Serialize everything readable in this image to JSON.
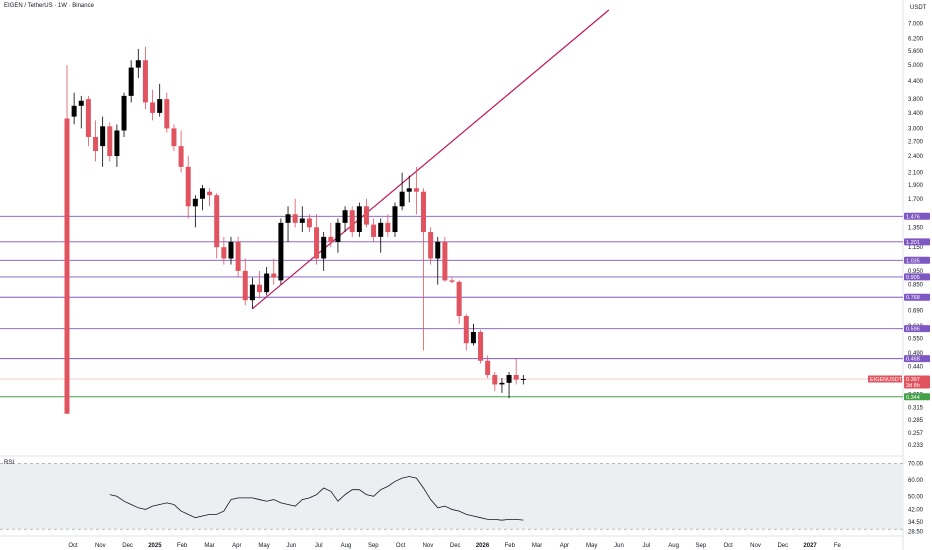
{
  "header": {
    "title": "EIGEN / TetherUS · 1W · Binance"
  },
  "chart_data": {
    "type": "candlestick",
    "title": "EIGEN / TetherUS · 1W · Binance",
    "currency_label": "USDT",
    "scale": "log",
    "ylim": [
      0.215,
      7.8
    ],
    "y_ticks": [
      "7.000",
      "6.200",
      "5.600",
      "5.000",
      "4.400",
      "3.800",
      "3.400",
      "3.000",
      "2.700",
      "2.400",
      "2.100",
      "1.900",
      "1.700",
      "1.350",
      "1.150",
      "0.950",
      "0.850",
      "0.690",
      "0.610",
      "0.550",
      "0.490",
      "0.440",
      "0.350",
      "0.315",
      "0.285",
      "0.257",
      "0.233"
    ],
    "x_ticks": [
      "Oct",
      "Nov",
      "Dec",
      "2025",
      "Feb",
      "Mar",
      "Apr",
      "May",
      "Jun",
      "Jul",
      "Aug",
      "Sep",
      "Oct",
      "Nov",
      "Dec",
      "2026",
      "Feb",
      "Mar",
      "Apr",
      "May",
      "Jun",
      "Jul",
      "Aug",
      "Sep",
      "Oct",
      "Nov",
      "Dec",
      "2027",
      "Fe"
    ],
    "candles": [
      {
        "o": 3.25,
        "h": 5.0,
        "l": 0.3,
        "c": 0.3
      },
      {
        "o": 3.3,
        "h": 4.0,
        "l": 3.1,
        "c": 3.6
      },
      {
        "o": 3.6,
        "h": 3.9,
        "l": 3.0,
        "c": 3.75
      },
      {
        "o": 3.8,
        "h": 3.9,
        "l": 2.6,
        "c": 2.8
      },
      {
        "o": 2.8,
        "h": 3.2,
        "l": 2.3,
        "c": 2.5
      },
      {
        "o": 2.6,
        "h": 3.3,
        "l": 2.2,
        "c": 3.05
      },
      {
        "o": 3.05,
        "h": 3.15,
        "l": 2.3,
        "c": 2.4
      },
      {
        "o": 2.4,
        "h": 3.1,
        "l": 2.2,
        "c": 2.95
      },
      {
        "o": 2.95,
        "h": 4.0,
        "l": 2.8,
        "c": 3.9
      },
      {
        "o": 3.9,
        "h": 5.2,
        "l": 3.7,
        "c": 4.9
      },
      {
        "o": 4.9,
        "h": 5.7,
        "l": 4.5,
        "c": 5.2
      },
      {
        "o": 5.2,
        "h": 5.8,
        "l": 3.5,
        "c": 3.7
      },
      {
        "o": 3.7,
        "h": 4.1,
        "l": 3.2,
        "c": 3.4
      },
      {
        "o": 3.4,
        "h": 4.3,
        "l": 3.3,
        "c": 3.8
      },
      {
        "o": 3.8,
        "h": 4.0,
        "l": 2.9,
        "c": 3.0
      },
      {
        "o": 3.0,
        "h": 3.1,
        "l": 2.5,
        "c": 2.6
      },
      {
        "o": 2.6,
        "h": 2.95,
        "l": 2.1,
        "c": 2.2
      },
      {
        "o": 2.2,
        "h": 2.4,
        "l": 1.45,
        "c": 1.6
      },
      {
        "o": 1.6,
        "h": 1.75,
        "l": 1.35,
        "c": 1.7
      },
      {
        "o": 1.7,
        "h": 1.9,
        "l": 1.55,
        "c": 1.85
      },
      {
        "o": 1.8,
        "h": 1.85,
        "l": 1.6,
        "c": 1.75
      },
      {
        "o": 1.75,
        "h": 1.78,
        "l": 1.05,
        "c": 1.15
      },
      {
        "o": 1.15,
        "h": 1.25,
        "l": 1.0,
        "c": 1.05
      },
      {
        "o": 1.05,
        "h": 1.25,
        "l": 1.0,
        "c": 1.2
      },
      {
        "o": 1.2,
        "h": 1.25,
        "l": 0.9,
        "c": 0.95
      },
      {
        "o": 0.95,
        "h": 1.05,
        "l": 0.72,
        "c": 0.75
      },
      {
        "o": 0.75,
        "h": 0.9,
        "l": 0.7,
        "c": 0.85
      },
      {
        "o": 0.85,
        "h": 0.95,
        "l": 0.76,
        "c": 0.8
      },
      {
        "o": 0.8,
        "h": 0.98,
        "l": 0.78,
        "c": 0.93
      },
      {
        "o": 0.93,
        "h": 1.05,
        "l": 0.85,
        "c": 0.9
      },
      {
        "o": 0.88,
        "h": 1.45,
        "l": 0.85,
        "c": 1.4
      },
      {
        "o": 1.4,
        "h": 1.6,
        "l": 1.2,
        "c": 1.5
      },
      {
        "o": 1.5,
        "h": 1.7,
        "l": 1.35,
        "c": 1.4
      },
      {
        "o": 1.4,
        "h": 1.6,
        "l": 1.3,
        "c": 1.45
      },
      {
        "o": 1.45,
        "h": 1.5,
        "l": 1.3,
        "c": 1.35
      },
      {
        "o": 1.35,
        "h": 1.5,
        "l": 1.0,
        "c": 1.05
      },
      {
        "o": 1.05,
        "h": 1.3,
        "l": 0.95,
        "c": 1.25
      },
      {
        "o": 1.25,
        "h": 1.4,
        "l": 1.15,
        "c": 1.2
      },
      {
        "o": 1.2,
        "h": 1.45,
        "l": 1.1,
        "c": 1.4
      },
      {
        "o": 1.4,
        "h": 1.6,
        "l": 1.3,
        "c": 1.55
      },
      {
        "o": 1.55,
        "h": 1.6,
        "l": 1.25,
        "c": 1.3
      },
      {
        "o": 1.3,
        "h": 1.65,
        "l": 1.25,
        "c": 1.6
      },
      {
        "o": 1.6,
        "h": 1.7,
        "l": 1.35,
        "c": 1.38
      },
      {
        "o": 1.38,
        "h": 1.45,
        "l": 1.2,
        "c": 1.25
      },
      {
        "o": 1.25,
        "h": 1.45,
        "l": 1.1,
        "c": 1.4
      },
      {
        "o": 1.4,
        "h": 1.5,
        "l": 1.25,
        "c": 1.3
      },
      {
        "o": 1.3,
        "h": 1.65,
        "l": 1.25,
        "c": 1.6
      },
      {
        "o": 1.6,
        "h": 2.1,
        "l": 1.55,
        "c": 1.8
      },
      {
        "o": 1.8,
        "h": 2.05,
        "l": 1.65,
        "c": 1.85
      },
      {
        "o": 1.85,
        "h": 2.2,
        "l": 1.5,
        "c": 1.8
      },
      {
        "o": 1.8,
        "h": 1.85,
        "l": 0.5,
        "c": 1.3
      },
      {
        "o": 1.3,
        "h": 1.35,
        "l": 1.0,
        "c": 1.05
      },
      {
        "o": 1.05,
        "h": 1.25,
        "l": 0.85,
        "c": 1.2
      },
      {
        "o": 1.2,
        "h": 1.25,
        "l": 0.87,
        "c": 0.88
      },
      {
        "o": 0.88,
        "h": 0.9,
        "l": 0.86,
        "c": 0.87
      },
      {
        "o": 0.87,
        "h": 0.88,
        "l": 0.62,
        "c": 0.66
      },
      {
        "o": 0.66,
        "h": 0.67,
        "l": 0.5,
        "c": 0.53
      },
      {
        "o": 0.53,
        "h": 0.62,
        "l": 0.52,
        "c": 0.58
      },
      {
        "o": 0.58,
        "h": 0.59,
        "l": 0.45,
        "c": 0.46
      },
      {
        "o": 0.46,
        "h": 0.48,
        "l": 0.4,
        "c": 0.41
      },
      {
        "o": 0.41,
        "h": 0.42,
        "l": 0.36,
        "c": 0.38
      },
      {
        "o": 0.38,
        "h": 0.4,
        "l": 0.355,
        "c": 0.385
      },
      {
        "o": 0.385,
        "h": 0.42,
        "l": 0.34,
        "c": 0.41
      },
      {
        "o": 0.41,
        "h": 0.47,
        "l": 0.38,
        "c": 0.395
      },
      {
        "o": 0.395,
        "h": 0.41,
        "l": 0.38,
        "c": 0.397
      }
    ],
    "horizontal_levels": [
      {
        "value": 1.476,
        "label": "1.476",
        "color": "#7e57c2"
      },
      {
        "value": 1.201,
        "label": "1.201",
        "color": "#7e57c2"
      },
      {
        "value": 1.035,
        "label": "1.035",
        "color": "#7e57c2"
      },
      {
        "value": 0.905,
        "label": "0.905",
        "color": "#7e57c2"
      },
      {
        "value": 0.768,
        "label": "0.768",
        "color": "#7e57c2"
      },
      {
        "value": 0.596,
        "label": "0.596",
        "color": "#7e57c2"
      },
      {
        "value": 0.468,
        "label": "0.468",
        "color": "#7e57c2"
      },
      {
        "value": 0.344,
        "label": "0.344",
        "color": "#43a047"
      }
    ],
    "current_price": {
      "symbol": "EIGENUSDT",
      "value": 0.397,
      "label": "0.397",
      "countdown": "3d 8h"
    },
    "trendline": {
      "from": {
        "candle": 26,
        "value": 0.7
      },
      "to": {
        "candle": 76,
        "value": 7.8
      },
      "color": "#c2185b"
    },
    "rsi": {
      "label": "RSI",
      "y_ticks": [
        "70.00",
        "60.00",
        "50.00",
        "42.00",
        "34.50",
        "28.50"
      ],
      "upper_band": 70,
      "lower_band": 30,
      "values": [
        51,
        50,
        47,
        45,
        43,
        42,
        44,
        45,
        46,
        45,
        41,
        39,
        37,
        38,
        39,
        39,
        41,
        48,
        49,
        49,
        49,
        48,
        47,
        48,
        46,
        45,
        44,
        48,
        49,
        51,
        55,
        53,
        47,
        51,
        54,
        54,
        51,
        50,
        54,
        56,
        59,
        61,
        62,
        61,
        55,
        48,
        43,
        44,
        42,
        41,
        39,
        38,
        37,
        36,
        36,
        35.5,
        36,
        36,
        35.5
      ]
    },
    "colors": {
      "bull": "#000000",
      "bear": "#e0535f",
      "axis_text": "#131722",
      "grid": "#e0e3eb"
    }
  }
}
